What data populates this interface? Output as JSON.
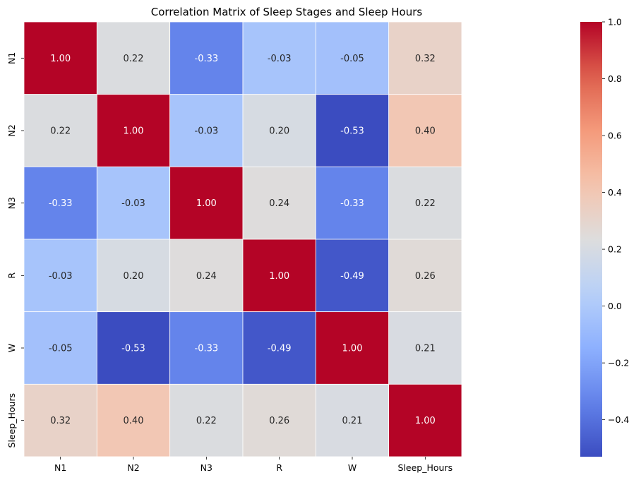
{
  "chart_data": {
    "type": "heatmap",
    "title": "Correlation Matrix of Sleep Stages and Sleep Hours",
    "xlabel": "",
    "ylabel": "",
    "x_categories": [
      "N1",
      "N2",
      "N3",
      "R",
      "W",
      "Sleep_Hours"
    ],
    "y_categories": [
      "N1",
      "N2",
      "N3",
      "R",
      "W",
      "Sleep_Hours"
    ],
    "values": [
      [
        1.0,
        0.22,
        -0.33,
        -0.03,
        -0.05,
        0.32
      ],
      [
        0.22,
        1.0,
        -0.03,
        0.2,
        -0.53,
        0.4
      ],
      [
        -0.33,
        -0.03,
        1.0,
        0.24,
        -0.33,
        0.22
      ],
      [
        -0.03,
        0.2,
        0.24,
        1.0,
        -0.49,
        0.26
      ],
      [
        -0.05,
        -0.53,
        -0.33,
        -0.49,
        1.0,
        0.21
      ],
      [
        0.32,
        0.4,
        0.22,
        0.26,
        0.21,
        1.0
      ]
    ],
    "value_format": "2f",
    "colormap": "coolwarm",
    "vmin": -0.53,
    "vmax": 1.0,
    "colorbar_ticks": [
      1.0,
      0.8,
      0.6,
      0.4,
      0.2,
      0.0,
      -0.2,
      -0.4
    ],
    "colorbar_tick_labels": [
      "1.0",
      "0.8",
      "0.6",
      "0.4",
      "0.2",
      "0.0",
      "−0.2",
      "−0.4"
    ],
    "cell_border_color": "#ffffff",
    "grid": false,
    "colorbar_placement": "right"
  }
}
